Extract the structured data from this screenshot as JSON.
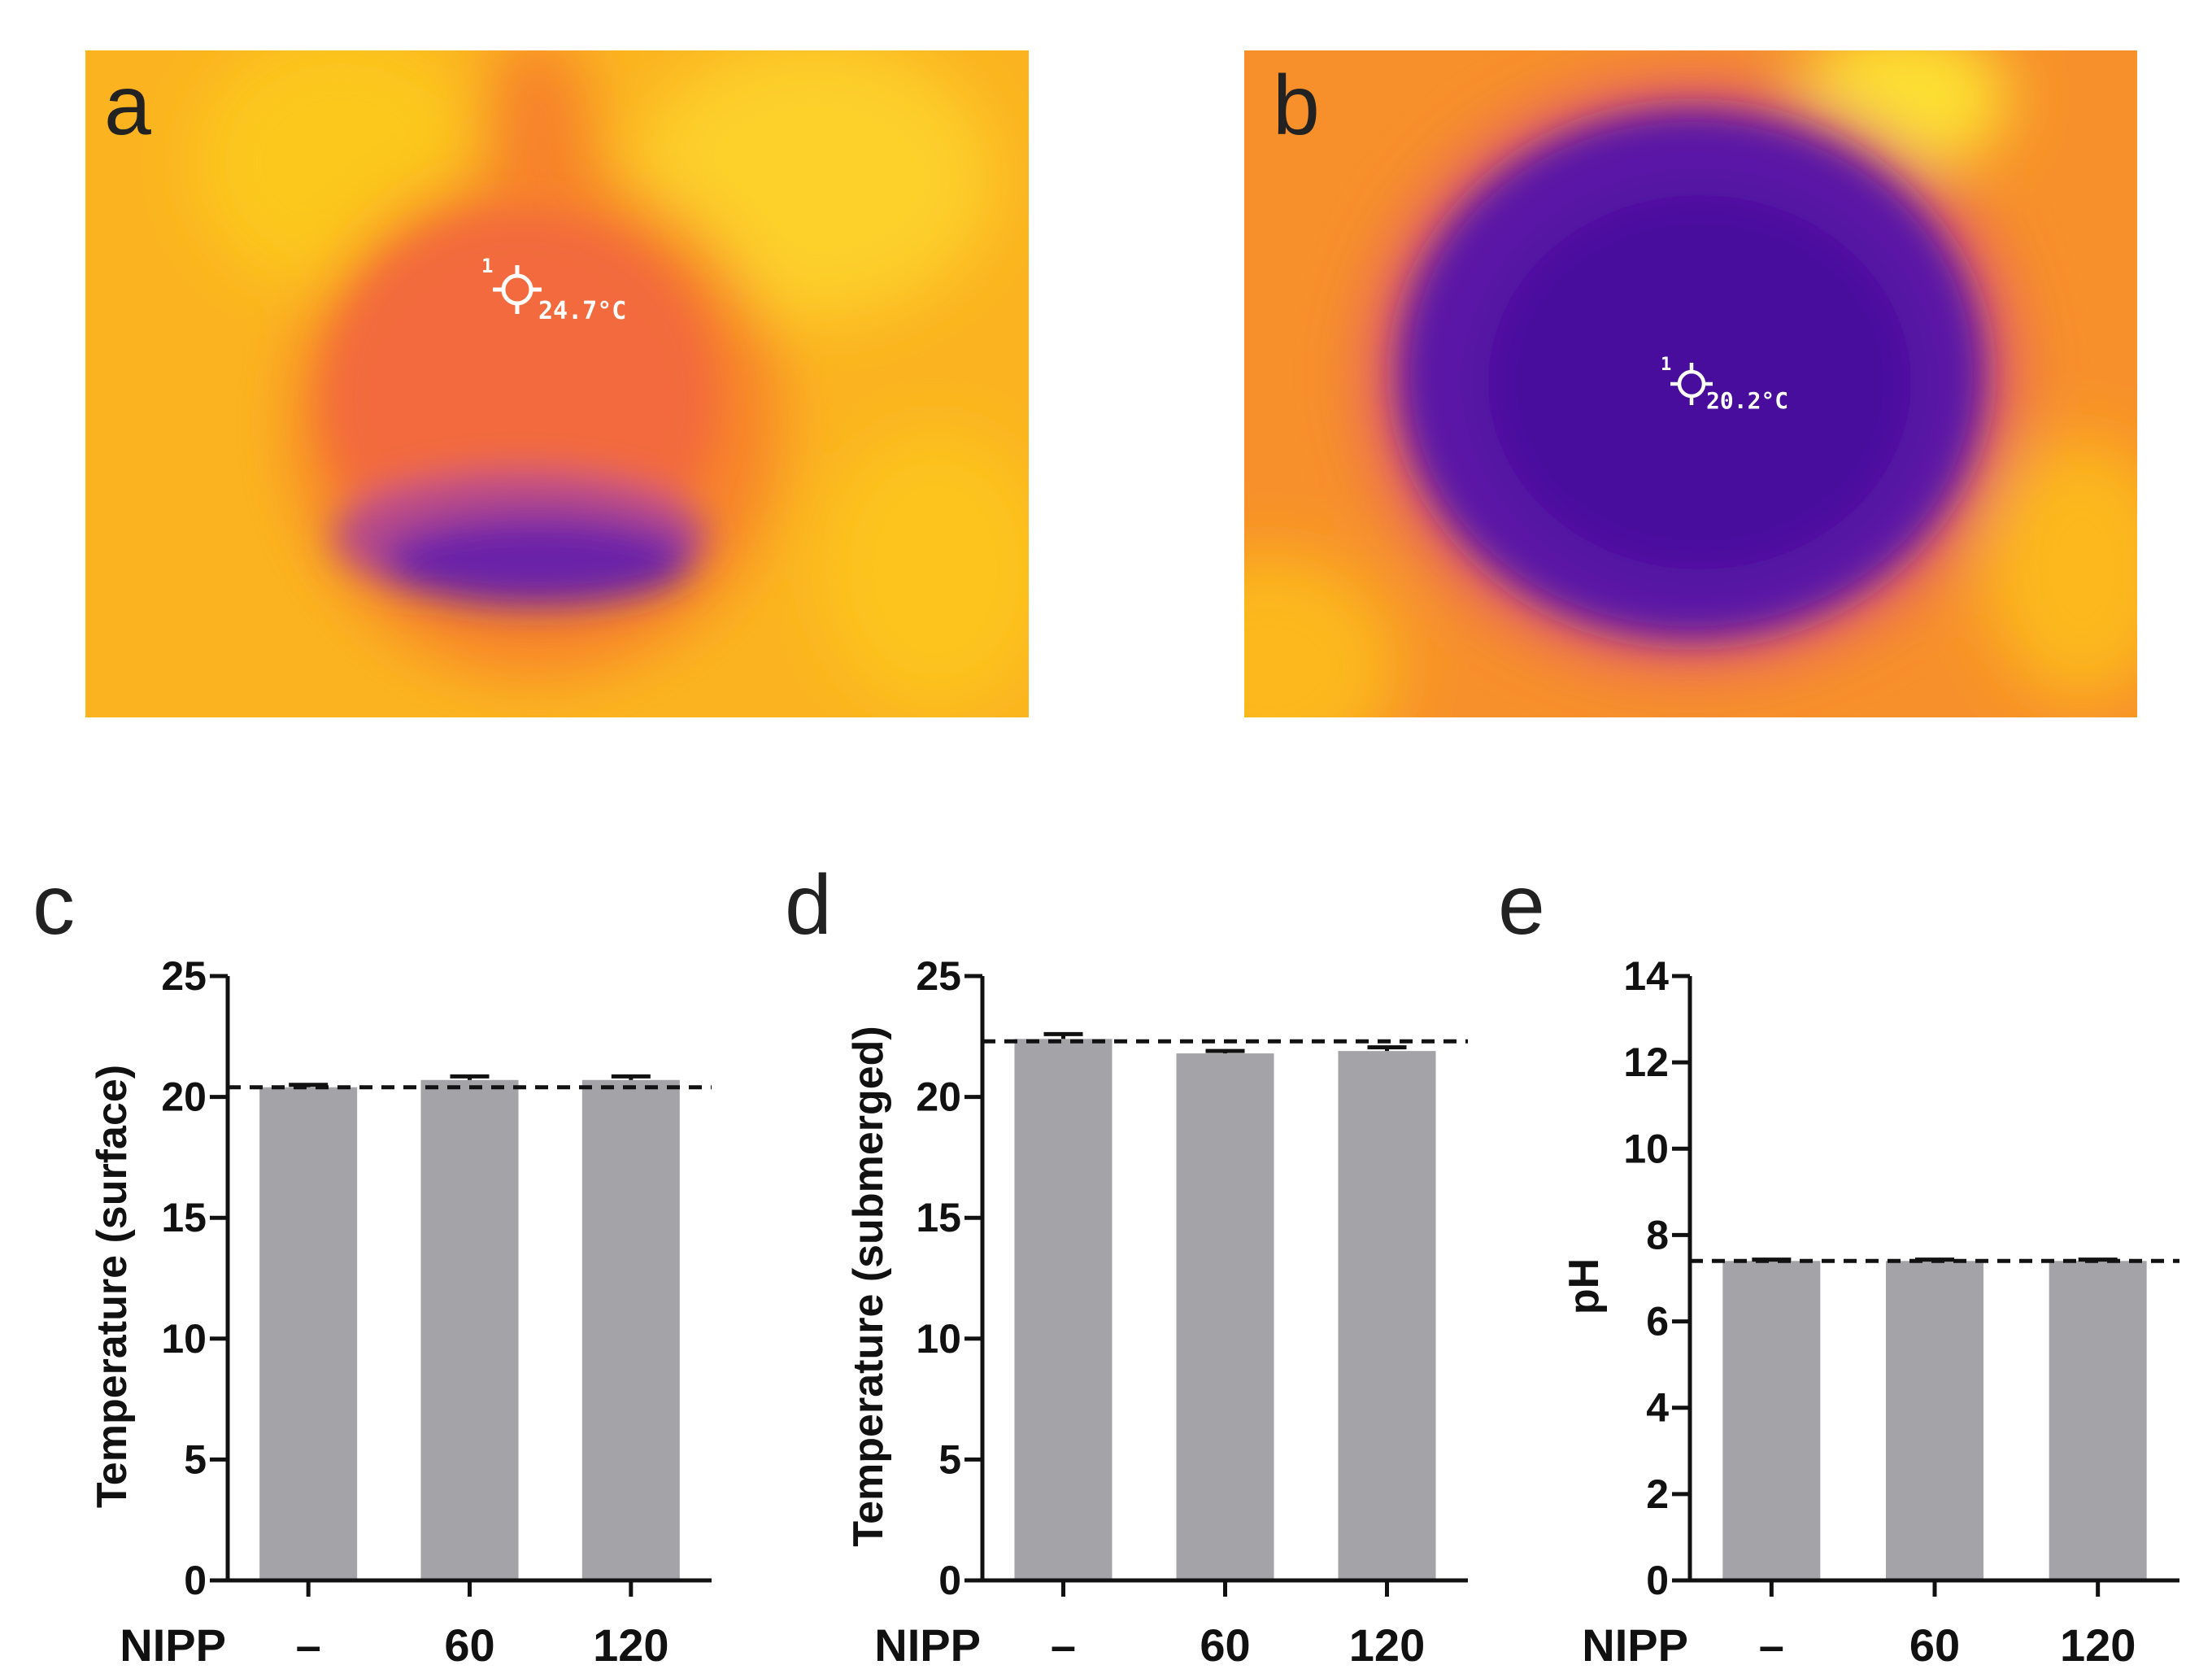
{
  "panels": {
    "a": {
      "letter": "a",
      "readout_marker": "1",
      "readout": "24.7°C"
    },
    "b": {
      "letter": "b",
      "readout_marker": "1",
      "readout": "20.2°C"
    }
  },
  "colors": {
    "bar": "#a3a3a8",
    "axis": "#111111",
    "thermal_warm": "#fbbf1a",
    "thermal_hot": "#f5722e",
    "thermal_cold": "#4b0fa0"
  },
  "chart_data": [
    {
      "panel": "c",
      "type": "bar",
      "categories": [
        "–",
        "60",
        "120"
      ],
      "values": [
        20.4,
        20.7,
        20.7
      ],
      "errors": [
        0.1,
        0.15,
        0.15
      ],
      "reference_line": 20.4,
      "ylabel": "Temperature (surface)",
      "xlabel": "NIPP",
      "ylim": [
        0,
        25
      ],
      "yticks": [
        0,
        5,
        10,
        15,
        20,
        25
      ]
    },
    {
      "panel": "d",
      "type": "bar",
      "categories": [
        "–",
        "60",
        "120"
      ],
      "values": [
        22.4,
        21.8,
        21.9
      ],
      "errors": [
        0.2,
        0.1,
        0.15
      ],
      "reference_line": 22.3,
      "ylabel": "Temperature (submerged)",
      "xlabel": "NIPP",
      "ylim": [
        0,
        25
      ],
      "yticks": [
        0,
        5,
        10,
        15,
        20,
        25
      ]
    },
    {
      "panel": "e",
      "type": "bar",
      "categories": [
        "–",
        "60",
        "120"
      ],
      "values": [
        7.4,
        7.4,
        7.4
      ],
      "errors": [
        0.03,
        0.03,
        0.03
      ],
      "reference_line": 7.4,
      "ylabel": "pH",
      "xlabel": "NIPP",
      "ylim": [
        0,
        14
      ],
      "yticks": [
        0,
        2,
        4,
        6,
        8,
        10,
        12,
        14
      ]
    }
  ]
}
